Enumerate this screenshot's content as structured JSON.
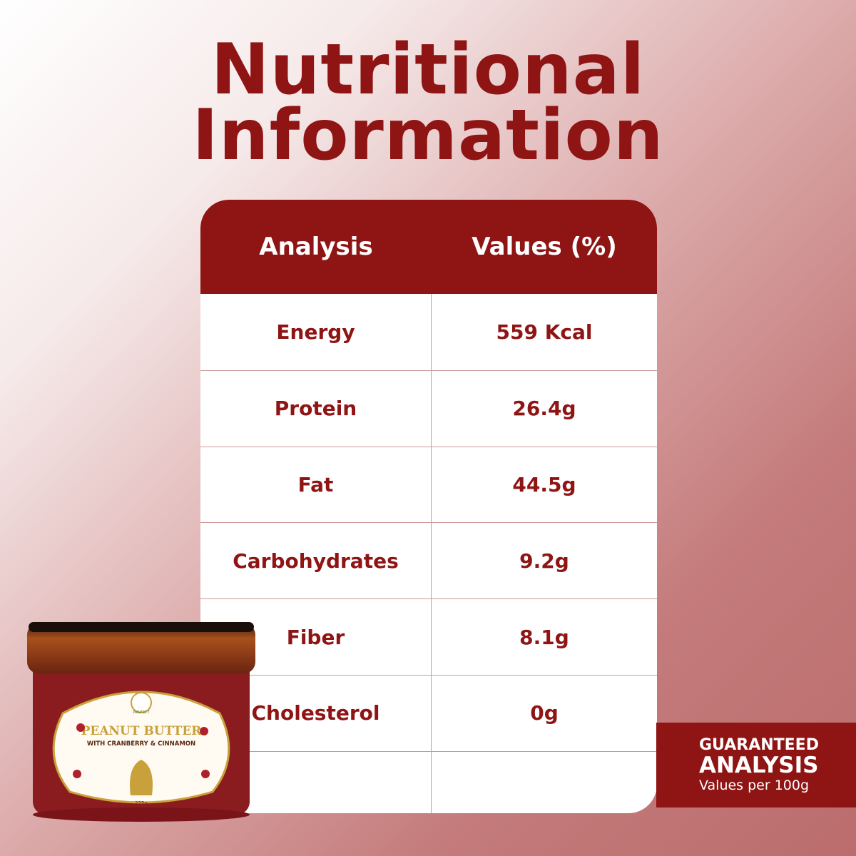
{
  "title": {
    "line1": "Nutritional",
    "line2": "Information"
  },
  "table": {
    "headers": [
      "Analysis",
      "Values (%)"
    ],
    "rows": [
      [
        "Energy",
        "559 Kcal"
      ],
      [
        "Protein",
        "26.4g"
      ],
      [
        "Fat",
        "44.5g"
      ],
      [
        "Carbohydrates",
        "9.2g"
      ],
      [
        "Fiber",
        "8.1g"
      ],
      [
        "Cholesterol",
        "0g"
      ],
      [
        "",
        ""
      ]
    ]
  },
  "banner": {
    "line1": "GUARANTEED",
    "line2": "ANALYSIS",
    "line3": "Values per 100g"
  },
  "product": {
    "brand": "PAWFECT",
    "name": "PEANUT BUTTER",
    "flavor": "WITH CRANBERRY & CINNAMON",
    "weight": "275g"
  },
  "colors": {
    "brand": "#8f1414",
    "label_gold": "#c9a13a"
  }
}
